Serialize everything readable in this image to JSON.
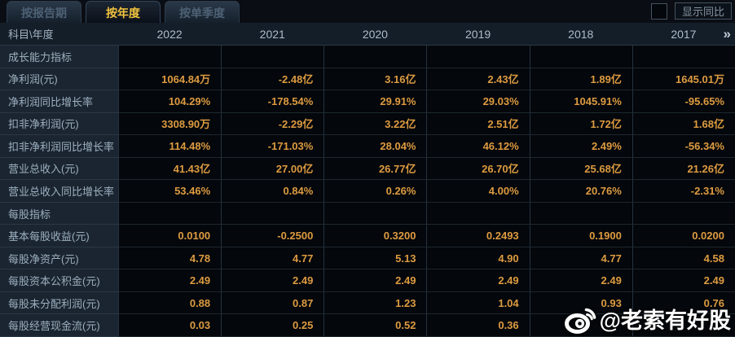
{
  "tabs": [
    {
      "id": "by-report-period",
      "label": "按报告期",
      "active": false
    },
    {
      "id": "by-year",
      "label": "按年度",
      "active": true
    },
    {
      "id": "by-quarter",
      "label": "按单季度",
      "active": false
    }
  ],
  "show_yoy": {
    "label": "显示同比",
    "checked": false
  },
  "table": {
    "corner_label": "科目\\年度",
    "years": [
      "2022",
      "2021",
      "2020",
      "2019",
      "2018",
      "2017"
    ],
    "more_icon": "»",
    "rows": [
      {
        "label": "成长能力指标",
        "type": "section",
        "highlight": false,
        "values": [
          "",
          "",
          "",
          "",
          "",
          ""
        ]
      },
      {
        "label": "净利润(元)",
        "type": "data",
        "highlight": true,
        "values": [
          "1064.84万",
          "-2.48亿",
          "3.16亿",
          "2.43亿",
          "1.89亿",
          "1645.01万"
        ]
      },
      {
        "label": "净利润同比增长率",
        "type": "data",
        "highlight": false,
        "values": [
          "104.29%",
          "-178.54%",
          "29.91%",
          "29.03%",
          "1045.91%",
          "-95.65%"
        ]
      },
      {
        "label": "扣非净利润(元)",
        "type": "data",
        "highlight": false,
        "values": [
          "3308.90万",
          "-2.29亿",
          "3.22亿",
          "2.51亿",
          "1.72亿",
          "1.68亿"
        ]
      },
      {
        "label": "扣非净利润同比增长率",
        "type": "data",
        "highlight": false,
        "values": [
          "114.48%",
          "-171.03%",
          "28.04%",
          "46.12%",
          "2.49%",
          "-56.34%"
        ]
      },
      {
        "label": "营业总收入(元)",
        "type": "data",
        "highlight": false,
        "values": [
          "41.43亿",
          "27.00亿",
          "26.77亿",
          "26.70亿",
          "25.68亿",
          "21.26亿"
        ]
      },
      {
        "label": "营业总收入同比增长率",
        "type": "data",
        "highlight": false,
        "values": [
          "53.46%",
          "0.84%",
          "0.26%",
          "4.00%",
          "20.76%",
          "-2.31%"
        ]
      },
      {
        "label": "每股指标",
        "type": "section",
        "highlight": false,
        "values": [
          "",
          "",
          "",
          "",
          "",
          ""
        ]
      },
      {
        "label": "基本每股收益(元)",
        "type": "data",
        "highlight": false,
        "values": [
          "0.0100",
          "-0.2500",
          "0.3200",
          "0.2493",
          "0.1900",
          "0.0200"
        ]
      },
      {
        "label": "每股净资产(元)",
        "type": "data",
        "highlight": false,
        "values": [
          "4.78",
          "4.77",
          "5.13",
          "4.90",
          "4.77",
          "4.58"
        ]
      },
      {
        "label": "每股资本公积金(元)",
        "type": "data",
        "highlight": false,
        "values": [
          "2.49",
          "2.49",
          "2.49",
          "2.49",
          "2.49",
          "2.49"
        ]
      },
      {
        "label": "每股未分配利润(元)",
        "type": "data",
        "highlight": false,
        "values": [
          "0.88",
          "0.87",
          "1.23",
          "1.04",
          "0.93",
          "0.76"
        ]
      },
      {
        "label": "每股经营现金流(元)",
        "type": "data",
        "highlight": false,
        "values": [
          "0.03",
          "0.25",
          "0.52",
          "0.36",
          "",
          ""
        ]
      }
    ]
  },
  "watermark": {
    "text": "@老索有好股",
    "icon": "weibo-logo"
  },
  "colors": {
    "accent_gold": "#f2c33e",
    "value_orange": "#dd9b41",
    "highlight_gold": "#f5c266",
    "background": "#0a0d13"
  }
}
